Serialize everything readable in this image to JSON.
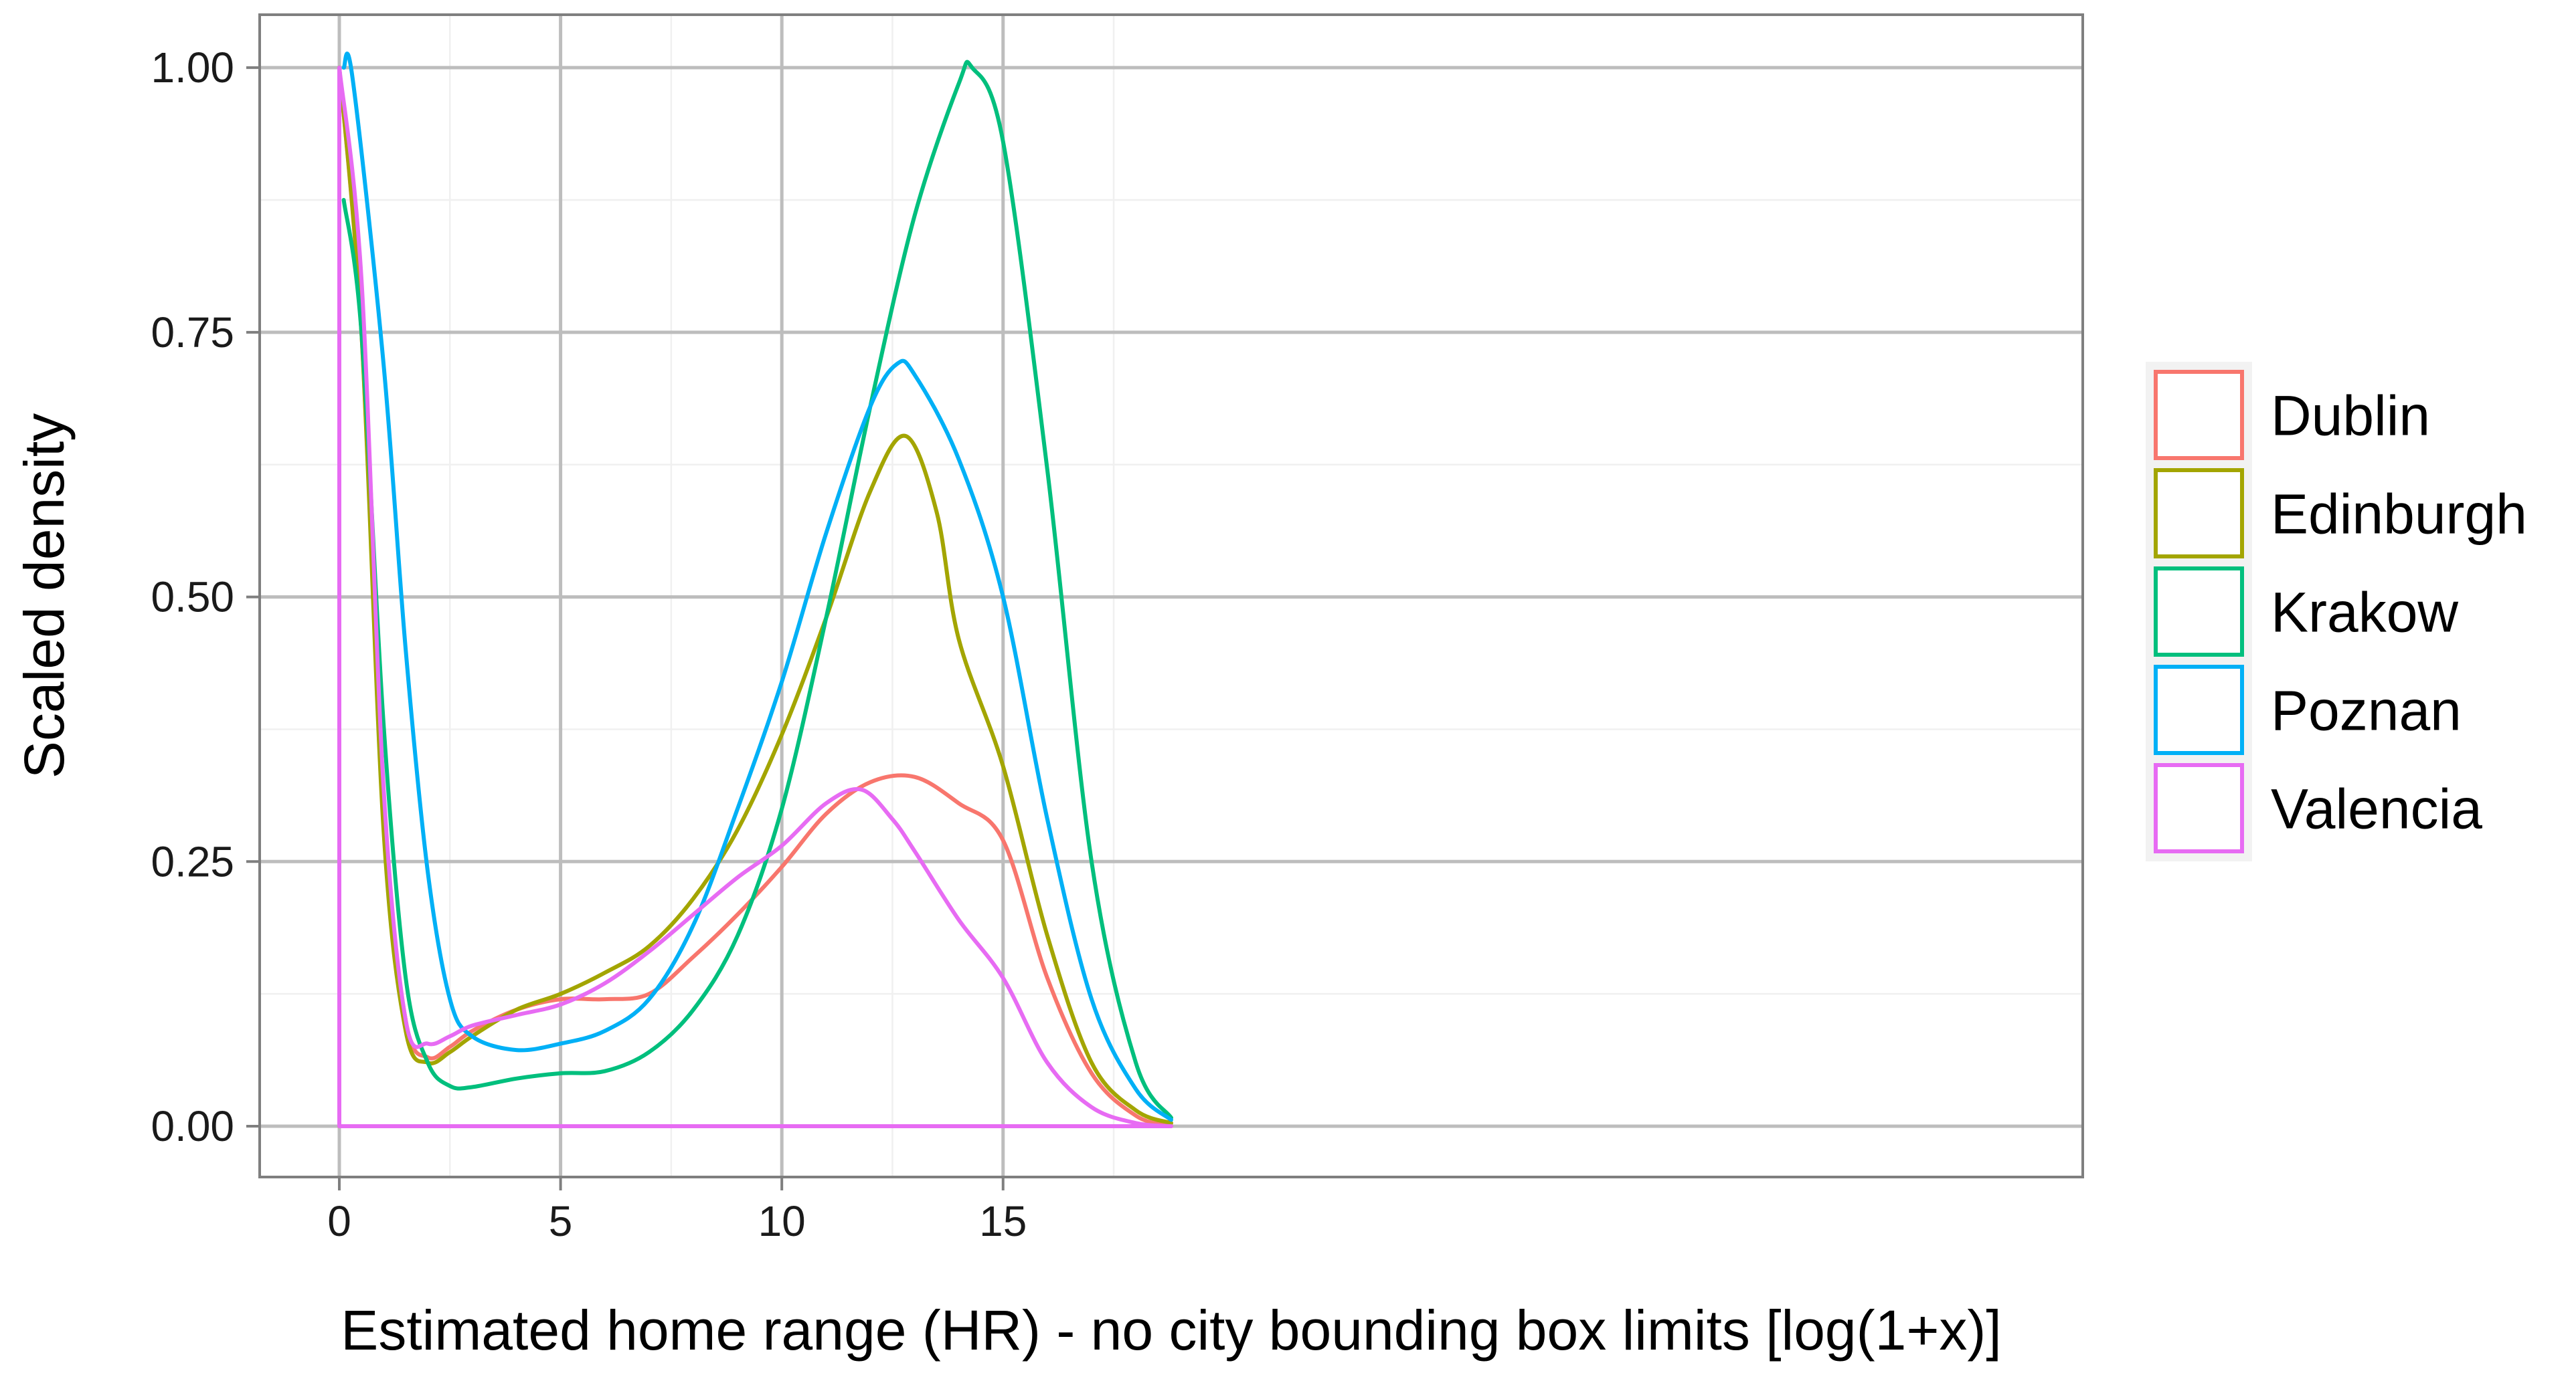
{
  "chart_data": {
    "type": "line",
    "title": "",
    "xlabel": "Estimated home range (HR) - no city bounding box limits [log(1+x)]",
    "ylabel": "Scaled density",
    "xlim": [
      -1.8,
      39.4
    ],
    "ylim": [
      -0.048,
      1.05
    ],
    "x_ticks": [
      0,
      5,
      10,
      15
    ],
    "x_tick_labels": [
      "0",
      "5",
      "10",
      "15"
    ],
    "y_ticks": [
      0,
      0.25,
      0.5,
      0.75,
      1
    ],
    "y_tick_labels": [
      "0.00",
      "0.25",
      "0.50",
      "0.75",
      "1.00"
    ],
    "grid": true,
    "legend_position": "right",
    "series": [
      {
        "name": "Dublin",
        "color": "#F8766D",
        "x": [
          0,
          0,
          0.5,
          1,
          1.5,
          2,
          2.5,
          3,
          4,
          5,
          6,
          7,
          8,
          9,
          10,
          11,
          12,
          13,
          14,
          15,
          16,
          17,
          18,
          18.8
        ],
        "y": [
          0,
          1.0,
          0.75,
          0.3,
          0.1,
          0.065,
          0.075,
          0.09,
          0.11,
          0.12,
          0.12,
          0.125,
          0.16,
          0.2,
          0.245,
          0.295,
          0.325,
          0.33,
          0.305,
          0.27,
          0.14,
          0.05,
          0.01,
          0.0
        ]
      },
      {
        "name": "Edinburgh",
        "color": "#A3A500",
        "x": [
          0,
          0,
          0.5,
          1,
          1.5,
          2,
          2.5,
          3,
          4,
          5,
          6,
          7,
          8,
          9,
          10,
          11,
          12,
          12.8,
          13.5,
          14,
          15,
          16,
          17,
          18,
          18.8
        ],
        "y": [
          0,
          1.0,
          0.75,
          0.28,
          0.09,
          0.06,
          0.07,
          0.085,
          0.11,
          0.125,
          0.145,
          0.17,
          0.215,
          0.28,
          0.37,
          0.48,
          0.6,
          0.652,
          0.58,
          0.46,
          0.34,
          0.18,
          0.06,
          0.015,
          0.003
        ]
      },
      {
        "name": "Krakow",
        "color": "#00BF7D",
        "x": [
          0.1,
          0.5,
          1,
          1.5,
          2,
          2.5,
          3,
          4,
          5,
          6,
          7,
          8,
          9,
          10,
          11,
          12,
          13,
          14,
          14.3,
          15,
          16,
          17,
          18,
          18.8
        ],
        "y": [
          0.875,
          0.75,
          0.38,
          0.14,
          0.06,
          0.038,
          0.037,
          0.045,
          0.05,
          0.052,
          0.07,
          0.11,
          0.18,
          0.3,
          0.48,
          0.68,
          0.86,
          0.985,
          1.0,
          0.93,
          0.62,
          0.25,
          0.06,
          0.008
        ]
      },
      {
        "name": "Poznan",
        "color": "#00B0F6",
        "x": [
          0.1,
          0.3,
          1,
          1.5,
          2,
          2.5,
          3,
          4,
          5,
          6,
          7,
          8,
          9,
          10,
          11,
          12,
          12.6,
          13,
          14,
          15,
          16,
          17,
          18,
          18.8
        ],
        "y": [
          1.0,
          0.99,
          0.72,
          0.45,
          0.24,
          0.12,
          0.085,
          0.072,
          0.078,
          0.09,
          0.12,
          0.19,
          0.3,
          0.42,
          0.56,
          0.68,
          0.72,
          0.71,
          0.63,
          0.5,
          0.29,
          0.12,
          0.035,
          0.006
        ]
      },
      {
        "name": "Valencia",
        "color": "#E76BF3",
        "x": [
          0,
          0,
          0.5,
          1,
          1.5,
          2,
          2.5,
          3,
          4,
          5,
          6,
          7,
          8,
          9,
          10,
          11,
          11.8,
          12.5,
          13,
          14,
          15,
          16,
          17,
          18,
          18.8
        ],
        "y": [
          0,
          1.0,
          0.8,
          0.32,
          0.1,
          0.078,
          0.085,
          0.095,
          0.105,
          0.115,
          0.135,
          0.165,
          0.2,
          0.235,
          0.265,
          0.305,
          0.318,
          0.29,
          0.26,
          0.195,
          0.14,
          0.06,
          0.018,
          0.003,
          0.0
        ]
      }
    ]
  }
}
